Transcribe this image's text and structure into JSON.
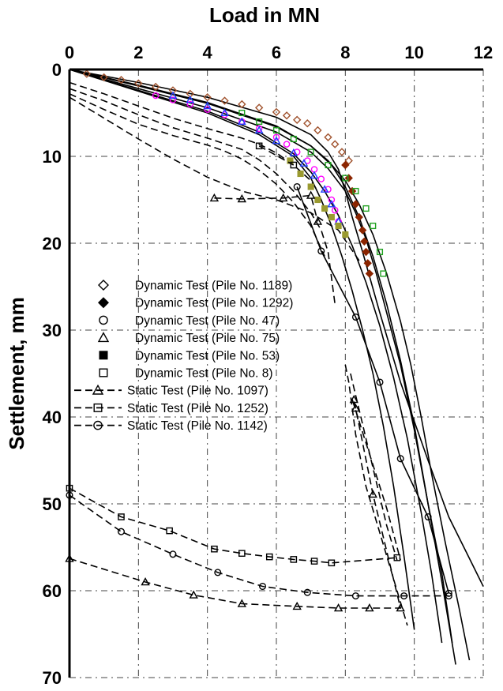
{
  "chart_data": {
    "type": "scatter",
    "title": "",
    "xlabel": "Load in MN",
    "ylabel": "Settlement, mm",
    "xlim": [
      0,
      12
    ],
    "ylim": [
      0,
      70
    ],
    "y_inverted": true,
    "x_axis_position": "top",
    "grid": true,
    "xticks": [
      "0",
      "2",
      "4",
      "6",
      "8",
      "10",
      "12"
    ],
    "yticks": [
      "0",
      "10",
      "20",
      "30",
      "40",
      "50",
      "60",
      "70"
    ],
    "legend_position": "center-left",
    "series": [
      {
        "name": "Dynamic Test (Pile No. 1189)",
        "marker": "diamond-open",
        "color": "#a0522d",
        "x": [
          0.5,
          1.0,
          1.5,
          2.0,
          2.5,
          3.0,
          3.5,
          4.0,
          4.5,
          5.0,
          5.5,
          6.0,
          6.3,
          6.6,
          6.9,
          7.2,
          7.5,
          7.7,
          7.9,
          8.1
        ],
        "y": [
          0.5,
          0.9,
          1.2,
          1.6,
          2.0,
          2.4,
          2.8,
          3.2,
          3.6,
          4.0,
          4.4,
          4.9,
          5.3,
          5.8,
          6.2,
          7.0,
          7.8,
          8.6,
          9.5,
          10.5
        ]
      },
      {
        "name": "Dynamic Test (Pile No. 1292)",
        "marker": "diamond-filled",
        "color": "#8b2500",
        "x": [
          8.0,
          8.1,
          8.2,
          8.3,
          8.4,
          8.5,
          8.55,
          8.6,
          8.65,
          8.7
        ],
        "y": [
          11.0,
          12.5,
          14.0,
          15.5,
          17.0,
          18.5,
          19.8,
          21.0,
          22.3,
          23.5
        ]
      },
      {
        "name": "Dynamic Test (Pile No. 47)",
        "marker": "circle-open",
        "color": "#ff00ff",
        "x": [
          2.5,
          3.0,
          3.5,
          4.0,
          4.5,
          5.0,
          5.5,
          6.0,
          6.3,
          6.6,
          6.9,
          7.1,
          7.3,
          7.5,
          7.6,
          7.7,
          7.8
        ],
        "y": [
          3.0,
          3.5,
          4.0,
          4.6,
          5.2,
          6.0,
          6.8,
          7.8,
          8.6,
          9.5,
          10.5,
          11.5,
          12.6,
          13.8,
          15.0,
          16.2,
          17.5
        ]
      },
      {
        "name": "Dynamic Test (Pile No. 75)",
        "marker": "triangle-open",
        "color": "#2040ff",
        "x": [
          3.0,
          3.5,
          4.0,
          4.5,
          5.0,
          5.5,
          6.0,
          6.5,
          6.8,
          7.1,
          7.4,
          7.6,
          7.8
        ],
        "y": [
          3.0,
          3.5,
          4.2,
          5.0,
          6.0,
          7.0,
          8.2,
          9.6,
          10.8,
          12.2,
          13.8,
          15.5,
          17.5
        ]
      },
      {
        "name": "Dynamic Test (Pile No. 53)",
        "marker": "square-filled",
        "color": "#9a9a30",
        "x": [
          6.4,
          6.7,
          7.0,
          7.2,
          7.4,
          7.6,
          7.8,
          8.0
        ],
        "y": [
          10.5,
          12.0,
          13.5,
          15.0,
          16.0,
          17.0,
          18.0,
          19.0
        ]
      },
      {
        "name": "Dynamic Test (Pile No. 8)",
        "marker": "square-open",
        "color": "#20a020",
        "x": [
          5.0,
          5.5,
          6.0,
          6.5,
          7.0,
          7.5,
          8.0,
          8.3,
          8.6,
          8.8,
          9.0,
          9.1
        ],
        "y": [
          5.0,
          6.0,
          7.0,
          8.0,
          9.5,
          11.0,
          12.5,
          14.0,
          16.0,
          18.0,
          21.0,
          23.5
        ]
      },
      {
        "name": "Static Test (Pile No. 1097)",
        "marker": "triangle-open",
        "color": "#000000",
        "dashed": true,
        "x": [
          0,
          2.2,
          3.6,
          5.0,
          6.6,
          7.8,
          8.7,
          9.6,
          8.8,
          8.3,
          8.25
        ],
        "y": [
          56.3,
          59.0,
          60.5,
          61.5,
          61.8,
          62.0,
          62.0,
          62.0,
          48.9,
          39.0,
          38.0
        ]
      },
      {
        "name": "Static Test (Pile No. 1252)",
        "marker": "square-open",
        "color": "#000000",
        "dashed": true,
        "x": [
          0,
          1.5,
          2.9,
          4.2,
          5.0,
          5.8,
          6.5,
          7.1,
          7.6,
          9.5
        ],
        "y": [
          48.2,
          51.5,
          53.1,
          55.2,
          55.7,
          56.1,
          56.4,
          56.6,
          56.8,
          56.2
        ]
      },
      {
        "name": "Static Test (Pile No. 1142)",
        "marker": "circle-open",
        "color": "#000000",
        "dashed": true,
        "x": [
          0,
          1.5,
          3.0,
          4.3,
          5.6,
          6.9,
          8.3,
          9.7,
          11.0
        ],
        "y": [
          49.0,
          53.2,
          55.8,
          57.9,
          59.5,
          60.2,
          60.6,
          60.6,
          60.6
        ]
      },
      {
        "name": "",
        "marker": "circle-open",
        "color": "#000000",
        "dashed": false,
        "x": [
          6.6,
          7.3,
          8.3,
          9.0,
          9.6,
          10.4,
          11.0
        ],
        "y": [
          13.5,
          20.9,
          28.5,
          36.0,
          44.8,
          51.5,
          60.3
        ]
      },
      {
        "name": "",
        "marker": "triangle-open",
        "color": "#000000",
        "dashed": true,
        "x": [
          4.2,
          5.0,
          6.2,
          7.0,
          7.2
        ],
        "y": [
          14.8,
          14.9,
          14.8,
          14.5,
          17.5
        ]
      },
      {
        "name": "",
        "marker": "square-open",
        "color": "#000000",
        "dashed": true,
        "x": [
          5.5,
          6.5
        ],
        "y": [
          8.8,
          11.0
        ]
      }
    ],
    "fit_curves": [
      {
        "color": "#000000",
        "dashed": false,
        "x": [
          0,
          2,
          4,
          6,
          7,
          7.5,
          7.8,
          8.0,
          8.2,
          8.5,
          9.0,
          9.6,
          10.4,
          11.0,
          11.5,
          12.0
        ],
        "y": [
          0,
          1.5,
          3.2,
          5.5,
          7.5,
          9.5,
          11.5,
          14.0,
          17.0,
          21.0,
          28.0,
          36.0,
          45.0,
          51.5,
          55.5,
          59.5
        ]
      },
      {
        "color": "#000000",
        "dashed": false,
        "x": [
          0,
          2,
          4,
          6,
          7,
          7.6,
          8.0,
          8.4,
          8.8,
          9.2,
          9.6,
          10.0,
          10.4,
          10.8,
          11.2
        ],
        "y": [
          0,
          1.8,
          3.8,
          6.5,
          8.8,
          11.0,
          13.5,
          17.0,
          21.5,
          27.0,
          33.5,
          41.0,
          50.0,
          59.0,
          68.5
        ]
      },
      {
        "color": "#000000",
        "dashed": false,
        "x": [
          0,
          2,
          4,
          6,
          7,
          7.5,
          8.0,
          8.3,
          8.6,
          8.9,
          9.2,
          9.6,
          10.0,
          10.4,
          10.8,
          11.1
        ],
        "y": [
          0,
          2.2,
          4.4,
          7.2,
          9.5,
          11.4,
          14.0,
          16.5,
          19.5,
          23.5,
          28.0,
          34.0,
          41.5,
          50.0,
          58.0,
          66.0
        ]
      },
      {
        "color": "#000000",
        "dashed": false,
        "x": [
          0,
          2,
          4,
          5.5,
          6.5,
          7.0,
          7.3,
          7.6,
          7.9,
          8.2,
          8.5,
          8.8,
          9.1,
          9.4,
          9.7,
          10.0
        ],
        "y": [
          0,
          2.5,
          5.0,
          7.5,
          10.0,
          12.5,
          15.0,
          18.0,
          21.5,
          25.5,
          30.0,
          35.0,
          41.0,
          48.0,
          56.0,
          64.5
        ]
      },
      {
        "color": "#000000",
        "dashed": false,
        "x": [
          0,
          2,
          4,
          5.5,
          6.5,
          7.0,
          7.4,
          7.8,
          8.2,
          8.6,
          9.0,
          9.4,
          9.8,
          10.2,
          10.5,
          10.8
        ],
        "y": [
          0,
          2.4,
          4.8,
          7.2,
          9.7,
          11.8,
          14.0,
          16.8,
          20.3,
          24.5,
          29.5,
          35.5,
          42.5,
          51.0,
          58.0,
          66.0
        ]
      },
      {
        "color": "#000000",
        "dashed": false,
        "x": [
          0,
          2,
          4,
          6,
          7.0,
          7.5,
          8.0,
          8.4,
          8.8,
          9.2,
          9.6,
          9.9,
          10.2,
          10.5,
          10.9,
          11.3,
          11.6
        ],
        "y": [
          0,
          1.9,
          3.9,
          6.6,
          8.8,
          10.5,
          12.8,
          15.5,
          19.0,
          23.5,
          29.0,
          34.0,
          40.0,
          46.5,
          54.5,
          62.0,
          68.0
        ]
      },
      {
        "color": "#000000",
        "dashed": true,
        "x": [
          0,
          1,
          2,
          3,
          4,
          5,
          5.5,
          6.0,
          6.5,
          7.0,
          7.2
        ],
        "y": [
          1.5,
          2.8,
          4.2,
          5.6,
          6.8,
          7.9,
          8.6,
          9.6,
          11.0,
          12.8,
          14.0
        ]
      },
      {
        "color": "#000000",
        "dashed": true,
        "x": [
          0,
          1,
          2,
          3,
          4,
          5,
          5.5,
          6.0,
          6.5,
          7.0,
          7.3,
          7.5,
          7.7
        ],
        "y": [
          2.2,
          3.6,
          5.2,
          6.7,
          7.9,
          9.2,
          10.4,
          12.0,
          14.0,
          16.5,
          18.5,
          21.0,
          27.0
        ]
      },
      {
        "color": "#000000",
        "dashed": true,
        "x": [
          0,
          1,
          2,
          3,
          4,
          4.5,
          5.0,
          5.5,
          6.0,
          6.5,
          7.0,
          7.4
        ],
        "y": [
          2.8,
          4.6,
          6.3,
          7.6,
          8.7,
          9.4,
          10.3,
          11.6,
          13.2,
          15.3,
          18.0,
          21.5
        ]
      },
      {
        "color": "#000000",
        "dashed": true,
        "x": [
          0,
          1,
          2,
          3,
          4,
          5,
          6,
          7,
          7.8,
          8.4
        ],
        "y": [
          3.2,
          5.6,
          8.0,
          10.3,
          12.4,
          14.0,
          15.0,
          16.5,
          18.5,
          22.0
        ]
      },
      {
        "color": "#000000",
        "dashed": true,
        "x": [
          8.0,
          8.1,
          8.2,
          8.3,
          8.45,
          8.6,
          8.75,
          8.9,
          9.05,
          9.2,
          9.35,
          9.5,
          9.65,
          9.8
        ],
        "y": [
          34.0,
          36.0,
          39.0,
          42.0,
          45.0,
          48.0,
          50.0,
          52.0,
          54.0,
          56.0,
          58.0,
          60.0,
          62.0,
          64.0
        ]
      },
      {
        "color": "#000000",
        "dashed": true,
        "x": [
          8.15,
          8.3,
          8.45,
          8.6,
          8.75,
          8.9,
          9.05,
          9.2,
          9.35,
          9.5
        ],
        "y": [
          35.0,
          37.5,
          40.0,
          42.5,
          45.0,
          47.5,
          50.0,
          52.5,
          54.5,
          56.5
        ]
      },
      {
        "color": "#000000",
        "dashed": true,
        "x": [
          8.2,
          8.4,
          8.6,
          8.8,
          9.0,
          9.2,
          9.4,
          9.6
        ],
        "y": [
          38.0,
          40.5,
          43.0,
          45.5,
          48.0,
          50.5,
          53.5,
          56.5
        ]
      }
    ]
  }
}
